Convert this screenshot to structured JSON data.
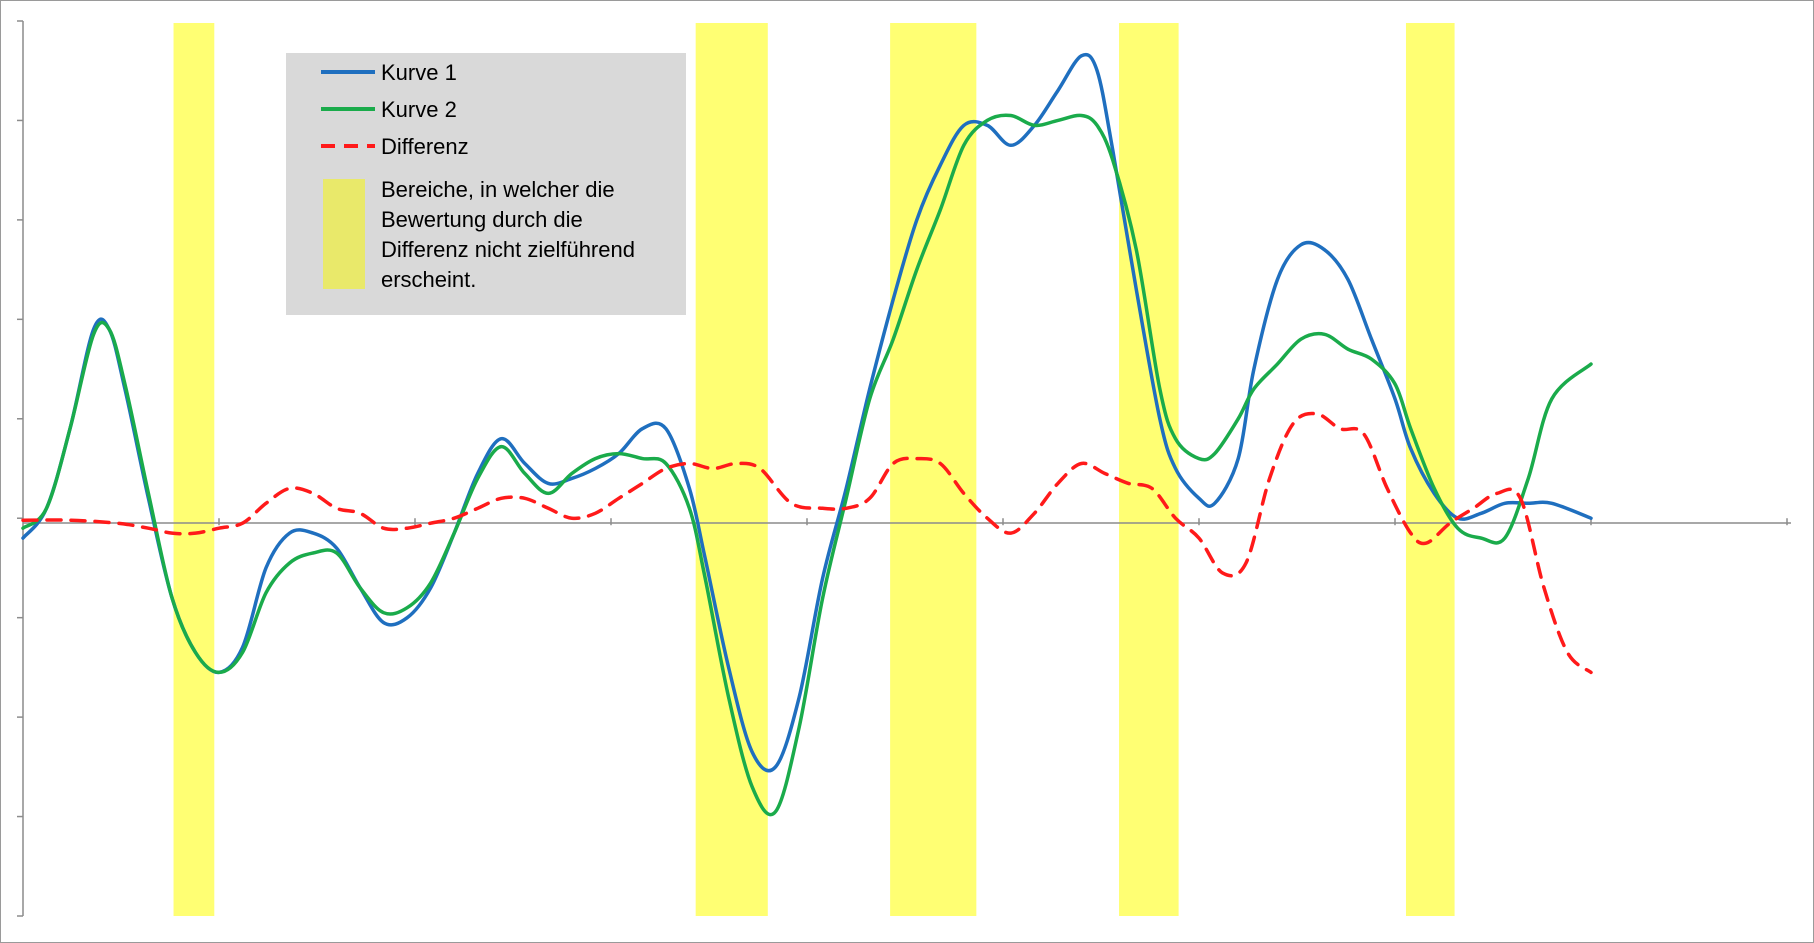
{
  "chart_data": {
    "type": "line",
    "title": "",
    "xlabel": "",
    "ylabel": "",
    "xlim": [
      0,
      100
    ],
    "ylim": [
      -4,
      5
    ],
    "grid": false,
    "legend_position": "top-left",
    "colors": {
      "kurve1": "#1f6fbf",
      "kurve2": "#1aab4b",
      "differenz": "#ff1a1a",
      "band": "#ffff00",
      "legend_bg": "#d9d9d9",
      "legend_band_swatch": "#e9e96a"
    },
    "series": [
      {
        "name": "Kurve 1",
        "style": "solid",
        "points": [
          [
            0,
            -0.2
          ],
          [
            1.5,
            0.1
          ],
          [
            3,
            0.9
          ],
          [
            4.5,
            1.9
          ],
          [
            5.5,
            1.9
          ],
          [
            6.5,
            1.3
          ],
          [
            8,
            0.2
          ],
          [
            9.5,
            -0.8
          ],
          [
            11,
            -1.35
          ],
          [
            12.5,
            -1.55
          ],
          [
            14,
            -1.3
          ],
          [
            15.5,
            -0.5
          ],
          [
            17,
            -0.15
          ],
          [
            18.5,
            -0.15
          ],
          [
            20,
            -0.3
          ],
          [
            21.5,
            -0.7
          ],
          [
            23,
            -1.05
          ],
          [
            24.5,
            -1.0
          ],
          [
            26,
            -0.7
          ],
          [
            27.5,
            -0.15
          ],
          [
            29,
            0.45
          ],
          [
            30.5,
            0.8
          ],
          [
            32,
            0.55
          ],
          [
            33.5,
            0.35
          ],
          [
            35,
            0.4
          ],
          [
            36.5,
            0.5
          ],
          [
            38,
            0.65
          ],
          [
            39.5,
            0.9
          ],
          [
            41,
            0.9
          ],
          [
            42.5,
            0.3
          ],
          [
            43.5,
            -0.4
          ],
          [
            45,
            -1.5
          ],
          [
            46.5,
            -2.35
          ],
          [
            48,
            -2.5
          ],
          [
            49.5,
            -1.8
          ],
          [
            51,
            -0.6
          ],
          [
            52.5,
            0.3
          ],
          [
            54,
            1.3
          ],
          [
            55.5,
            2.2
          ],
          [
            57,
            3.0
          ],
          [
            58.5,
            3.55
          ],
          [
            60,
            3.95
          ],
          [
            61.5,
            3.95
          ],
          [
            63,
            3.75
          ],
          [
            64.5,
            3.95
          ],
          [
            66,
            4.3
          ],
          [
            67.5,
            4.65
          ],
          [
            68.5,
            4.5
          ],
          [
            69.5,
            3.7
          ],
          [
            71,
            2.3
          ],
          [
            72.5,
            1.0
          ],
          [
            73.5,
            0.5
          ],
          [
            75,
            0.2
          ],
          [
            76,
            0.15
          ],
          [
            77.5,
            0.6
          ],
          [
            78.5,
            1.5
          ],
          [
            80,
            2.4
          ],
          [
            81.5,
            2.75
          ],
          [
            83,
            2.7
          ],
          [
            84.5,
            2.4
          ],
          [
            86,
            1.8
          ],
          [
            87.5,
            1.2
          ],
          [
            88.5,
            0.7
          ],
          [
            90,
            0.25
          ],
          [
            91.5,
            0.0
          ],
          [
            93,
            0.05
          ],
          [
            94.5,
            0.15
          ],
          [
            96,
            0.15
          ],
          [
            97.5,
            0.15
          ],
          [
            100,
            0.0
          ]
        ]
      },
      {
        "name": "Kurve 2",
        "style": "solid",
        "points": [
          [
            0,
            -0.1
          ],
          [
            1.5,
            0.1
          ],
          [
            3,
            0.9
          ],
          [
            4.5,
            1.85
          ],
          [
            5.5,
            1.9
          ],
          [
            6.5,
            1.35
          ],
          [
            8,
            0.25
          ],
          [
            9.5,
            -0.8
          ],
          [
            11,
            -1.35
          ],
          [
            12.5,
            -1.55
          ],
          [
            14,
            -1.35
          ],
          [
            15.5,
            -0.75
          ],
          [
            17,
            -0.45
          ],
          [
            18.5,
            -0.35
          ],
          [
            20,
            -0.35
          ],
          [
            21.5,
            -0.7
          ],
          [
            23,
            -0.95
          ],
          [
            24.5,
            -0.9
          ],
          [
            26,
            -0.65
          ],
          [
            27.5,
            -0.15
          ],
          [
            29,
            0.4
          ],
          [
            30.5,
            0.72
          ],
          [
            32,
            0.45
          ],
          [
            33.5,
            0.25
          ],
          [
            35,
            0.45
          ],
          [
            36.5,
            0.6
          ],
          [
            38,
            0.65
          ],
          [
            39.5,
            0.6
          ],
          [
            41,
            0.55
          ],
          [
            42.5,
            0.1
          ],
          [
            43.5,
            -0.6
          ],
          [
            45,
            -1.8
          ],
          [
            46.5,
            -2.7
          ],
          [
            48,
            -2.95
          ],
          [
            49.5,
            -2.1
          ],
          [
            51,
            -0.8
          ],
          [
            52.5,
            0.2
          ],
          [
            54,
            1.2
          ],
          [
            55.5,
            1.8
          ],
          [
            57,
            2.5
          ],
          [
            58.5,
            3.1
          ],
          [
            60,
            3.75
          ],
          [
            61.5,
            4.0
          ],
          [
            63,
            4.05
          ],
          [
            64.5,
            3.95
          ],
          [
            66,
            4.0
          ],
          [
            67.5,
            4.05
          ],
          [
            68.5,
            3.95
          ],
          [
            69.5,
            3.6
          ],
          [
            71,
            2.7
          ],
          [
            72.5,
            1.3
          ],
          [
            73.5,
            0.8
          ],
          [
            75,
            0.6
          ],
          [
            76,
            0.65
          ],
          [
            77.5,
            1.0
          ],
          [
            78.5,
            1.3
          ],
          [
            80,
            1.55
          ],
          [
            81.5,
            1.8
          ],
          [
            83,
            1.85
          ],
          [
            84.5,
            1.7
          ],
          [
            86,
            1.6
          ],
          [
            87.5,
            1.35
          ],
          [
            88.5,
            0.9
          ],
          [
            90,
            0.3
          ],
          [
            91.5,
            -0.1
          ],
          [
            93,
            -0.2
          ],
          [
            94.5,
            -0.2
          ],
          [
            96,
            0.4
          ],
          [
            97.5,
            1.2
          ],
          [
            100,
            1.55
          ]
        ]
      },
      {
        "name": "Differenz",
        "style": "dashed",
        "points": [
          [
            0,
            -0.02
          ],
          [
            3,
            -0.02
          ],
          [
            6,
            -0.05
          ],
          [
            8,
            -0.1
          ],
          [
            9.5,
            -0.15
          ],
          [
            11,
            -0.15
          ],
          [
            12.5,
            -0.1
          ],
          [
            14,
            -0.05
          ],
          [
            15.5,
            0.15
          ],
          [
            17,
            0.3
          ],
          [
            18.5,
            0.25
          ],
          [
            20,
            0.1
          ],
          [
            21.5,
            0.05
          ],
          [
            23,
            -0.1
          ],
          [
            24.5,
            -0.1
          ],
          [
            26,
            -0.05
          ],
          [
            27.5,
            0.0
          ],
          [
            29,
            0.1
          ],
          [
            30.5,
            0.2
          ],
          [
            32,
            0.2
          ],
          [
            33.5,
            0.1
          ],
          [
            35,
            0.0
          ],
          [
            36.5,
            0.05
          ],
          [
            38,
            0.2
          ],
          [
            39.5,
            0.35
          ],
          [
            41,
            0.5
          ],
          [
            42.5,
            0.55
          ],
          [
            44,
            0.5
          ],
          [
            45.5,
            0.55
          ],
          [
            47,
            0.5
          ],
          [
            49,
            0.15
          ],
          [
            51,
            0.1
          ],
          [
            52.5,
            0.1
          ],
          [
            54,
            0.2
          ],
          [
            55.5,
            0.55
          ],
          [
            57,
            0.6
          ],
          [
            58.5,
            0.55
          ],
          [
            60,
            0.25
          ],
          [
            61.5,
            0.0
          ],
          [
            63,
            -0.15
          ],
          [
            64.5,
            0.05
          ],
          [
            66,
            0.35
          ],
          [
            67.5,
            0.55
          ],
          [
            69,
            0.45
          ],
          [
            70.5,
            0.35
          ],
          [
            72,
            0.3
          ],
          [
            73.5,
            0.0
          ],
          [
            75,
            -0.2
          ],
          [
            76.5,
            -0.55
          ],
          [
            78,
            -0.45
          ],
          [
            79.5,
            0.4
          ],
          [
            81,
            0.95
          ],
          [
            82.5,
            1.05
          ],
          [
            84,
            0.9
          ],
          [
            85.5,
            0.85
          ],
          [
            87,
            0.3
          ],
          [
            88.5,
            -0.15
          ],
          [
            89.5,
            -0.25
          ],
          [
            91,
            -0.05
          ],
          [
            92.5,
            0.1
          ],
          [
            94,
            0.25
          ],
          [
            95.5,
            0.2
          ],
          [
            97,
            -0.7
          ],
          [
            98.5,
            -1.35
          ],
          [
            100,
            -1.55
          ]
        ]
      }
    ],
    "highlight_bands": [
      {
        "start": 9.6,
        "end": 12.2
      },
      {
        "start": 42.9,
        "end": 47.5
      },
      {
        "start": 55.3,
        "end": 60.8
      },
      {
        "start": 69.9,
        "end": 73.7
      },
      {
        "start": 88.2,
        "end": 91.3
      }
    ],
    "legend": {
      "entries": [
        "Kurve 1",
        "Kurve 2",
        "Differenz"
      ],
      "band_lines": [
        "Bereiche, in welcher die",
        "Bewertung durch die",
        "Differenz nicht zielführend",
        "erscheint."
      ]
    }
  }
}
